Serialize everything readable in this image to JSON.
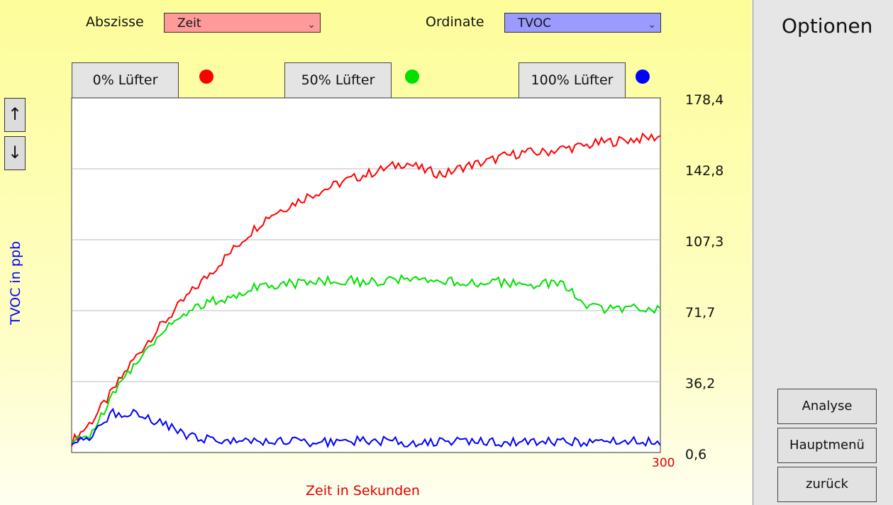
{
  "controls": {
    "abscissa_label": "Abszisse",
    "abscissa_value": "Zeit",
    "ordinate_label": "Ordinate",
    "ordinate_value": "TVOC",
    "chevron": "⌄"
  },
  "series_buttons": [
    {
      "label": "0% Lüfter",
      "color": "#ff0000"
    },
    {
      "label": "50% Lüfter",
      "color": "#00e000"
    },
    {
      "label": "100% Lüfter",
      "color": "#0000ff"
    }
  ],
  "nav": {
    "up_icon": "↑",
    "down_icon": "↓"
  },
  "sidebar": {
    "title": "Optionen",
    "buttons": [
      "Analyse",
      "Hauptmenü",
      "zurück"
    ]
  },
  "chart_data": {
    "type": "line",
    "xlabel": "Zeit in Sekunden",
    "ylabel": "TVOC in ppb",
    "x_max_label": "300",
    "xlim": [
      0,
      300
    ],
    "ylim": [
      0.6,
      178.4
    ],
    "yticks": [
      "178,4",
      "142,8",
      "107,3",
      "71,7",
      "36,2",
      "0,6"
    ],
    "grid": true,
    "colors": {
      "plot_bg": "#ffffff",
      "grid": "#bbbbbb",
      "xlabel": "#e00000",
      "ylabel": "#0000ff"
    },
    "series": [
      {
        "color": "#ff0000",
        "x": [
          0,
          10,
          20,
          30,
          40,
          50,
          60,
          70,
          80,
          90,
          100,
          110,
          120,
          130,
          140,
          150,
          160,
          170,
          180,
          190,
          200,
          210,
          220,
          230,
          240,
          250,
          260,
          270,
          280,
          290,
          300
        ],
        "y": [
          6,
          16,
          30,
          45,
          58,
          69,
          80,
          90,
          100,
          110,
          119,
          124,
          129,
          133,
          137,
          140,
          143,
          146,
          142,
          140,
          144,
          146,
          149,
          151,
          151,
          153,
          154,
          156,
          157,
          158,
          159
        ]
      },
      {
        "color": "#00e000",
        "x": [
          0,
          10,
          20,
          30,
          40,
          50,
          60,
          70,
          80,
          90,
          100,
          110,
          120,
          130,
          140,
          150,
          160,
          170,
          180,
          190,
          200,
          210,
          220,
          230,
          240,
          250,
          260,
          270,
          280,
          290,
          300
        ],
        "y": [
          5,
          10,
          28,
          42,
          55,
          65,
          72,
          76,
          78,
          83,
          85,
          85,
          86,
          87,
          87,
          86,
          87,
          87,
          86,
          86,
          86,
          86,
          86,
          84,
          85,
          85,
          76,
          72,
          73,
          73,
          73
        ]
      },
      {
        "color": "#0000ff",
        "x": [
          0,
          10,
          20,
          30,
          40,
          50,
          60,
          70,
          80,
          90,
          100,
          110,
          120,
          130,
          140,
          150,
          160,
          170,
          180,
          190,
          200,
          210,
          220,
          230,
          240,
          250,
          260,
          270,
          280,
          290,
          300
        ],
        "y": [
          6,
          9,
          20,
          21,
          17,
          13,
          9,
          7,
          6,
          6,
          6,
          6,
          6,
          6,
          6,
          7,
          6,
          6,
          6,
          6,
          6,
          6,
          6,
          6,
          6,
          6,
          6,
          6,
          6,
          6,
          6
        ]
      }
    ]
  }
}
